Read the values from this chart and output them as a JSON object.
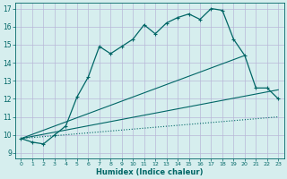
{
  "xlabel": "Humidex (Indice chaleur)",
  "xlim": [
    -0.5,
    23.5
  ],
  "ylim": [
    8.7,
    17.3
  ],
  "yticks": [
    9,
    10,
    11,
    12,
    13,
    14,
    15,
    16,
    17
  ],
  "xticks": [
    0,
    1,
    2,
    3,
    4,
    5,
    6,
    7,
    8,
    9,
    10,
    11,
    12,
    13,
    14,
    15,
    16,
    17,
    18,
    19,
    20,
    21,
    22,
    23
  ],
  "bg_color": "#d6eeee",
  "grid_color": "#b8b8d8",
  "line_color": "#006666",
  "main_x": [
    0,
    1,
    2,
    3,
    4,
    5,
    6,
    7,
    8,
    9,
    10,
    11,
    12,
    13,
    14,
    15,
    16,
    17,
    18,
    19,
    20,
    21,
    22,
    23
  ],
  "main_y": [
    9.8,
    9.6,
    9.5,
    10.0,
    10.5,
    12.1,
    13.2,
    14.9,
    14.5,
    14.9,
    15.3,
    16.1,
    15.6,
    16.2,
    16.5,
    16.7,
    16.4,
    17.0,
    16.9,
    15.3,
    14.4,
    12.6,
    12.6,
    12.0
  ],
  "line2_x": [
    0,
    20
  ],
  "line2_y": [
    9.8,
    14.4
  ],
  "line3_x": [
    0,
    23
  ],
  "line3_y": [
    9.8,
    12.5
  ],
  "line4_x": [
    0,
    23
  ],
  "line4_y": [
    9.8,
    11.0
  ]
}
